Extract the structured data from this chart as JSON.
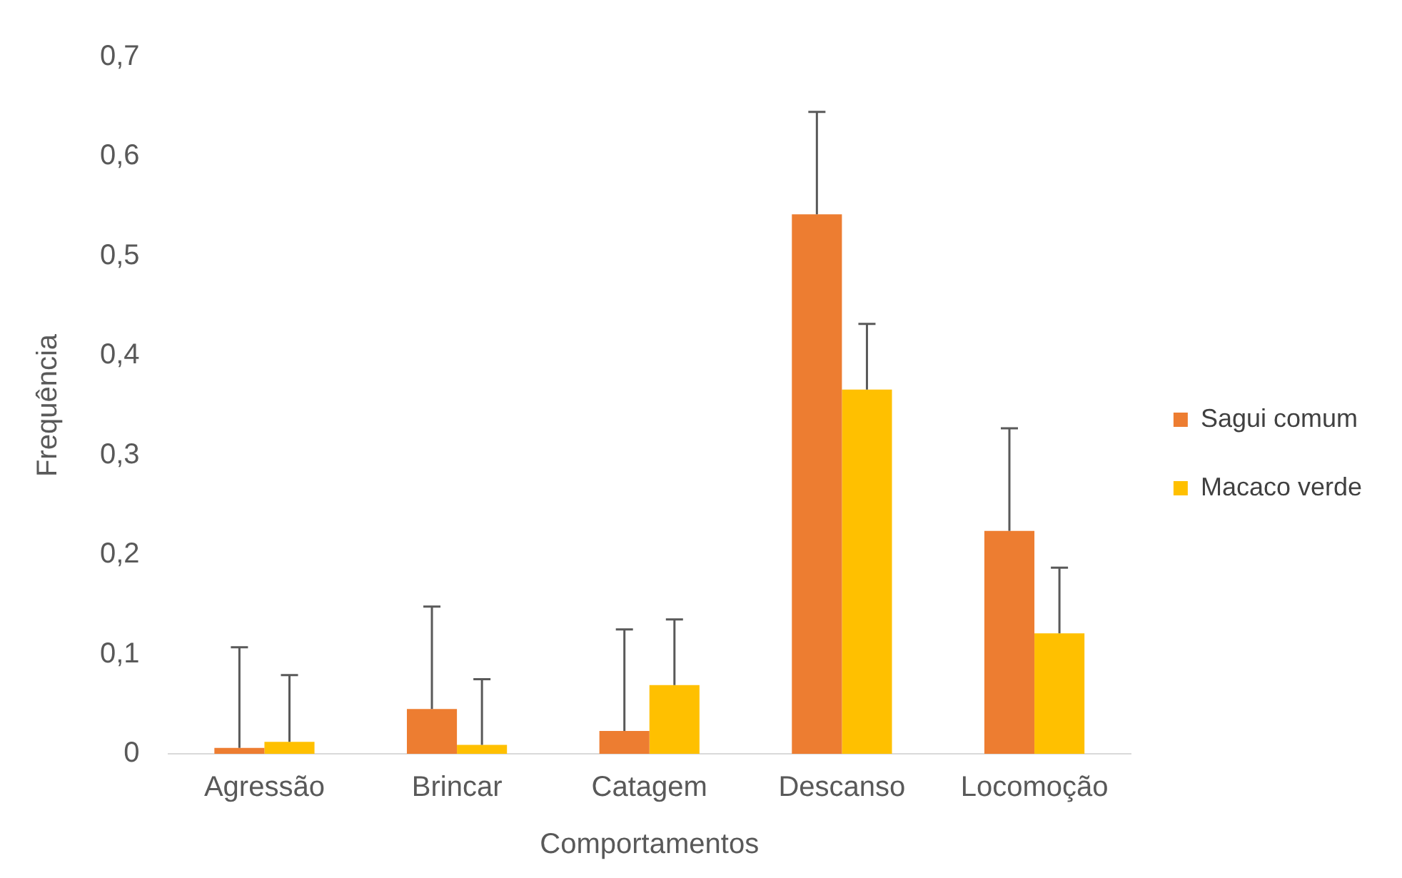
{
  "chart_data": {
    "type": "bar",
    "xlabel": "Comportamentos",
    "ylabel": "Frequência",
    "categories": [
      "Agressão",
      "Brincar",
      "Catagem",
      "Descanso",
      "Locomoção"
    ],
    "series": [
      {
        "name": "Sagui comum",
        "color": "#ed7d31",
        "values": [
          0.006,
          0.045,
          0.023,
          0.542,
          0.224
        ],
        "errors": [
          [
            0.006,
            0.107
          ],
          [
            0.045,
            0.148
          ],
          [
            0.023,
            0.125
          ],
          [
            0.542,
            0.645
          ],
          [
            0.224,
            0.327
          ]
        ]
      },
      {
        "name": "Macaco verde",
        "color": "#ffc000",
        "values": [
          0.012,
          0.009,
          0.069,
          0.366,
          0.121
        ],
        "errors": [
          [
            0.012,
            0.079
          ],
          [
            0.009,
            0.075
          ],
          [
            0.069,
            0.135
          ],
          [
            0.366,
            0.432
          ],
          [
            0.121,
            0.187
          ]
        ]
      }
    ],
    "ylim": [
      0,
      0.7
    ],
    "yticks": [
      {
        "value": 0,
        "label": "0"
      },
      {
        "value": 0.1,
        "label": "0,1"
      },
      {
        "value": 0.2,
        "label": "0,2"
      },
      {
        "value": 0.3,
        "label": "0,3"
      },
      {
        "value": 0.4,
        "label": "0,4"
      },
      {
        "value": 0.5,
        "label": "0,5"
      },
      {
        "value": 0.6,
        "label": "0,6"
      },
      {
        "value": 0.7,
        "label": "0,7"
      }
    ],
    "grid": false,
    "legend": "right"
  }
}
